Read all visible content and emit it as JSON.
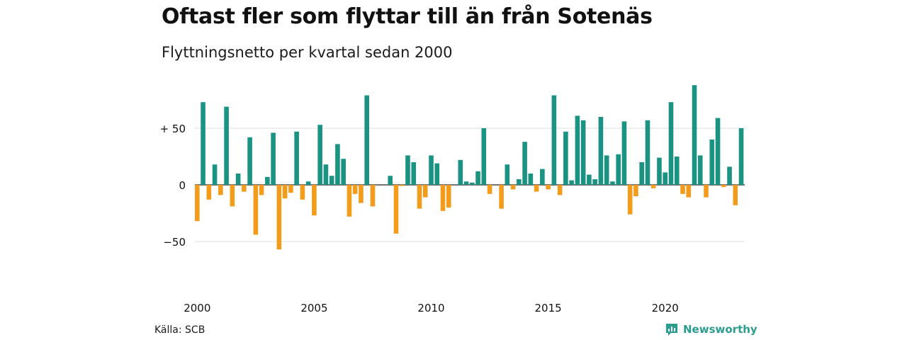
{
  "title": "Oftast fler som flyttar till än från Sotenäs",
  "subtitle": "Flyttningsnetto per kvartal sedan 2000",
  "source": "Källa: SCB",
  "brand": {
    "name": "Newsworthy",
    "icon": "newsworthy-logo-icon",
    "color": "#2a9d8f"
  },
  "colors": {
    "positive": "#1a9383",
    "negative": "#f39c1b",
    "grid": "#dddddd",
    "zero_line": "#222222"
  },
  "chart_data": {
    "type": "bar",
    "title": "Oftast fler som flyttar till än från Sotenäs",
    "subtitle": "Flyttningsnetto per kvartal sedan 2000",
    "xlabel": "",
    "ylabel": "",
    "x_start": "2000 Q1",
    "x_tick_labels": [
      "2000",
      "2005",
      "2010",
      "2015",
      "2020"
    ],
    "y_ticks": [
      {
        "value": 50,
        "label": "+ 50"
      },
      {
        "value": 0,
        "label": "0"
      },
      {
        "value": -50,
        "label": "−50"
      }
    ],
    "ylim": [
      -70,
      90
    ],
    "grid": true,
    "values": [
      -32,
      73,
      -13,
      18,
      -9,
      69,
      -19,
      10,
      -6,
      42,
      -44,
      -9,
      7,
      46,
      -57,
      -12,
      -7,
      47,
      -13,
      3,
      -27,
      53,
      18,
      8,
      36,
      23,
      -28,
      -8,
      -16,
      79,
      -19,
      0,
      0,
      8,
      -43,
      -1,
      26,
      20,
      -21,
      -11,
      26,
      19,
      -23,
      -20,
      0,
      22,
      3,
      2,
      12,
      50,
      -8,
      0,
      -21,
      18,
      -4,
      5,
      38,
      10,
      -6,
      14,
      -4,
      79,
      -9,
      47,
      4,
      61,
      57,
      9,
      5,
      60,
      26,
      3,
      27,
      56,
      -26,
      -10,
      20,
      57,
      -3,
      24,
      11,
      73,
      25,
      -8,
      -11,
      88,
      26,
      -11,
      40,
      59,
      -2,
      16,
      -18,
      50
    ]
  }
}
